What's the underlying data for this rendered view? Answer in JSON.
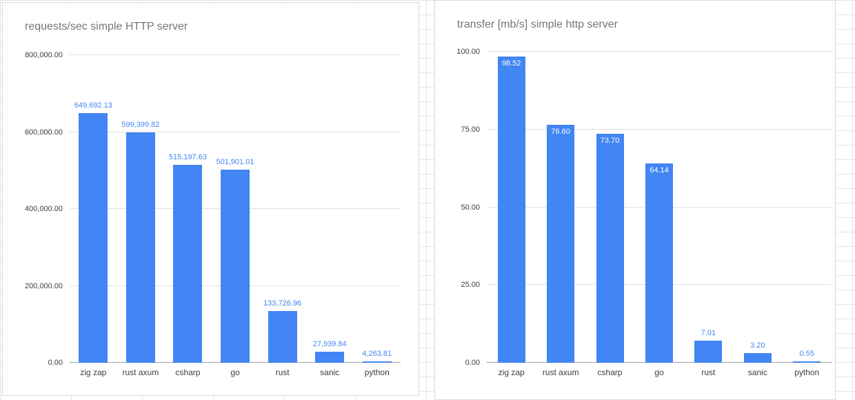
{
  "colors": {
    "bar": "#4285f4",
    "data_label": "#4285f4",
    "title": "#757575",
    "axis_text": "#3c3c3c",
    "gridline": "#e0e0e0",
    "baseline": "#9aa0a6",
    "card_border": "#d9d9d9",
    "sheet_line": "#e4e4e4"
  },
  "chart_data": [
    {
      "type": "bar",
      "title": "requests/sec simple HTTP server",
      "xlabel": "",
      "ylabel": "",
      "legend": "none",
      "grid": true,
      "categories": [
        "zig zap",
        "rust axum",
        "csharp",
        "go",
        "rust",
        "sanic",
        "python"
      ],
      "values": [
        649692.13,
        599399.82,
        515197.63,
        501901.01,
        133726.96,
        27939.84,
        4263.81
      ],
      "value_labels": [
        "649,692.13",
        "599,399.82",
        "515,197.63",
        "501,901.01",
        "133,726.96",
        "27,939.84",
        "4,263.81"
      ],
      "label_placements": [
        "above",
        "above",
        "above",
        "above",
        "above",
        "above",
        "above"
      ],
      "ylim": [
        0,
        800000
      ],
      "y_ticks": [
        {
          "value": 0,
          "label": "0.00"
        },
        {
          "value": 200000,
          "label": "200,000.00"
        },
        {
          "value": 400000,
          "label": "400,000.00"
        },
        {
          "value": 600000,
          "label": "600,000.00"
        },
        {
          "value": 800000,
          "label": "800,000.00"
        }
      ]
    },
    {
      "type": "bar",
      "title": "transfer [mb/s] simple http server",
      "xlabel": "",
      "ylabel": "",
      "legend": "none",
      "grid": true,
      "categories": [
        "zig zap",
        "rust axum",
        "csharp",
        "go",
        "rust",
        "sanic",
        "python"
      ],
      "values": [
        98.52,
        76.6,
        73.7,
        64.14,
        7.01,
        3.2,
        0.55
      ],
      "value_labels": [
        "98.52",
        "76.60",
        "73.70",
        "64.14",
        "7.01",
        "3.20",
        "0.55"
      ],
      "label_placements": [
        "inside",
        "inside",
        "inside",
        "inside",
        "above",
        "above",
        "above"
      ],
      "ylim": [
        0,
        100
      ],
      "y_ticks": [
        {
          "value": 0,
          "label": "0.00"
        },
        {
          "value": 25,
          "label": "25.00"
        },
        {
          "value": 50,
          "label": "50.00"
        },
        {
          "value": 75,
          "label": "75.00"
        },
        {
          "value": 100,
          "label": "100.00"
        }
      ]
    }
  ]
}
